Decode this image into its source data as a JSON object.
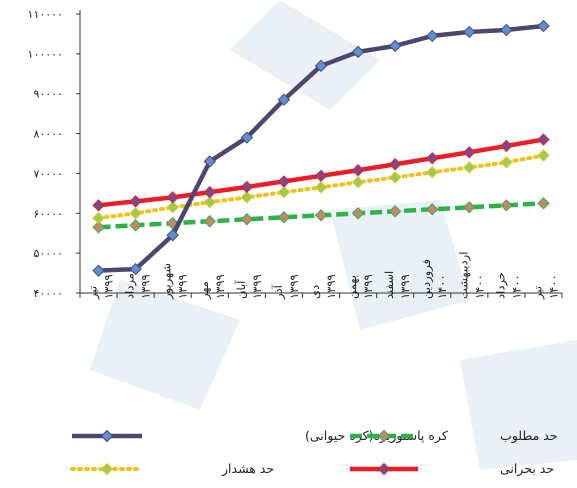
{
  "chart_data": {
    "type": "line",
    "categories": [
      "تیر ۱۳۹۹",
      "مرداد ۱۳۹۹",
      "شهریور ۱۳۹۹",
      "مهر ۱۳۹۹",
      "آبان ۱۳۹۹",
      "آذر ۱۳۹۹",
      "دی ۱۳۹۹",
      "بهمن ۱۳۹۹",
      "اسفند ۱۳۹۹",
      "فروردین ۱۴۰۰",
      "اردیبهشت ۱۴۰۰",
      "خرداد ۱۴۰۰",
      "تیر ۱۴۰۰"
    ],
    "category_lines": [
      [
        "تیر",
        "۱۳۹۹"
      ],
      [
        "مرداد",
        "۱۳۹۹"
      ],
      [
        "شهریور",
        "۱۳۹۹"
      ],
      [
        "مهر",
        "۱۳۹۹"
      ],
      [
        "آبان",
        "۱۳۹۹"
      ],
      [
        "آذر",
        "۱۳۹۹"
      ],
      [
        "دی",
        "۱۳۹۹"
      ],
      [
        "بهمن",
        "۱۳۹۹"
      ],
      [
        "اسفند",
        "۱۳۹۹"
      ],
      [
        "فروردین",
        "۱۴۰۰"
      ],
      [
        "اردیبهشت",
        "۱۴۰۰"
      ],
      [
        "خرداد",
        "۱۴۰۰"
      ],
      [
        "تیر",
        "۱۴۰۰"
      ]
    ],
    "ylim": [
      40000,
      110000
    ],
    "y_ticks": [
      40000,
      50000,
      60000,
      70000,
      80000,
      90000,
      100000,
      110000
    ],
    "y_tick_labels": [
      "۴۰۰۰۰",
      "۵۰۰۰۰",
      "۶۰۰۰۰",
      "۷۰۰۰۰",
      "۸۰۰۰۰",
      "۹۰۰۰۰",
      "۱۰۰۰۰۰",
      "۱۱۰۰۰۰"
    ],
    "grid": false,
    "legend_position": "bottom",
    "series": [
      {
        "name": "کره پاستوریزه(کره حیوانی)",
        "color": "#4d4671",
        "marker_color": "#5b8fd6",
        "marker": "diamond",
        "line_style": "solid",
        "values": [
          45600,
          46000,
          54500,
          73000,
          79000,
          88500,
          97000,
          100500,
          102000,
          104500,
          105500,
          106000,
          107000
        ]
      },
      {
        "name": "حد مطلوب",
        "color": "#2bb34a",
        "marker_color": "#c9856a",
        "marker": "diamond",
        "line_style": "dashed",
        "values": [
          56500,
          57000,
          57500,
          58000,
          58500,
          59000,
          59500,
          60000,
          60500,
          61000,
          61500,
          62000,
          62500
        ]
      },
      {
        "name": "حد هشدار",
        "color": "#f2c218",
        "marker_color": "#9acc5c",
        "marker": "diamond",
        "line_style": "dotted",
        "values": [
          58800,
          60000,
          61500,
          62800,
          64000,
          65300,
          66500,
          67800,
          69000,
          70300,
          71500,
          72800,
          74500
        ]
      },
      {
        "name": "حد بحرانی",
        "color": "#ee1c24",
        "marker_color": "#7a4a8f",
        "marker": "diamond",
        "line_style": "solid",
        "values": [
          62000,
          63000,
          64000,
          65300,
          66600,
          68000,
          69400,
          70800,
          72300,
          73800,
          75300,
          76900,
          78500
        ]
      }
    ]
  }
}
